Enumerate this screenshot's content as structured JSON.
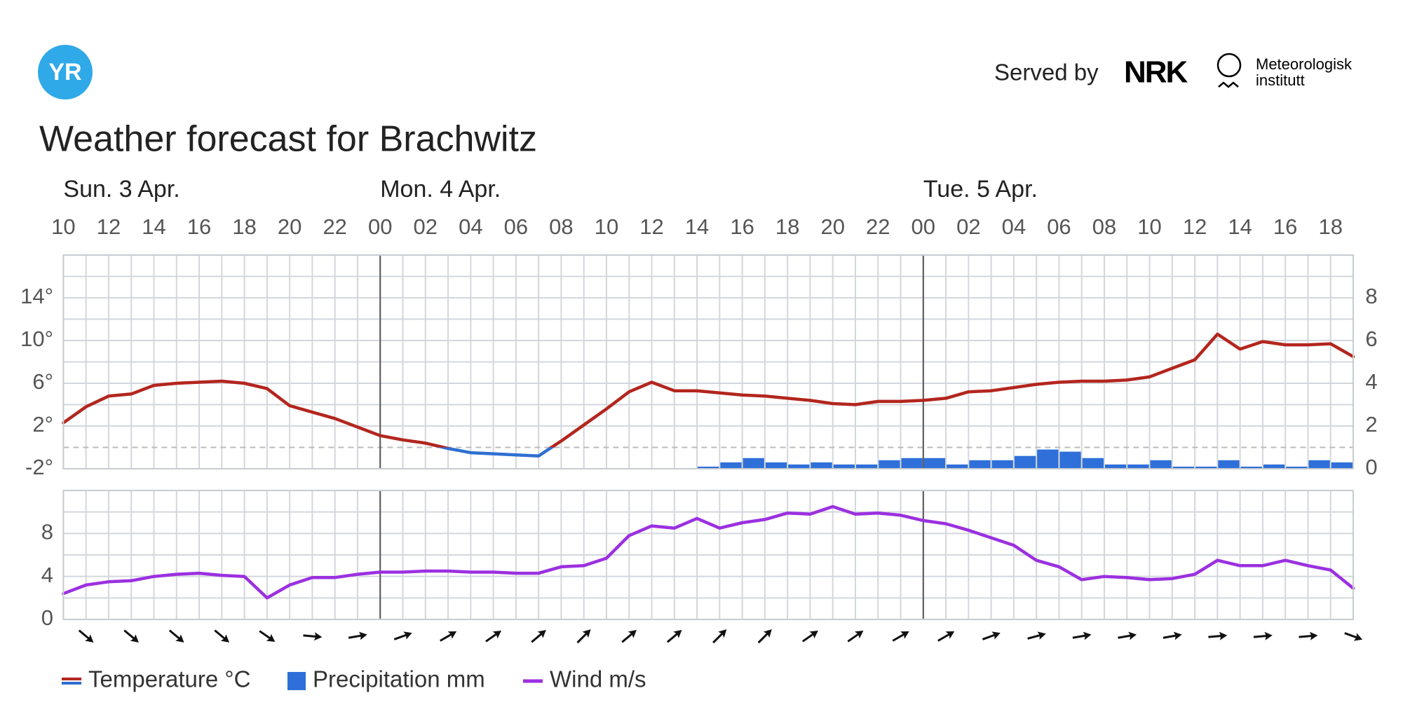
{
  "header": {
    "logo": "YR",
    "served_by": "Served by",
    "nrk": "NRK",
    "met": [
      "Meteorologisk",
      "institutt"
    ]
  },
  "chart_data": {
    "type": "weather",
    "title": "Weather forecast for Brachwitz",
    "days": [
      {
        "value": 0,
        "label": "Sun. 3 Apr."
      },
      {
        "value": 14,
        "label": "Mon. 4 Apr."
      },
      {
        "value": 38,
        "label": "Tue. 5 Apr."
      }
    ],
    "xlim": [
      0,
      57
    ],
    "xgrid": [
      0,
      1,
      2,
      3,
      4,
      5,
      6,
      7,
      8,
      9,
      10,
      11,
      12,
      13,
      14,
      15,
      16,
      17,
      18,
      19,
      20,
      21,
      22,
      23,
      24,
      25,
      26,
      27,
      28,
      29,
      30,
      31,
      32,
      33,
      34,
      35,
      36,
      37,
      38,
      39,
      40,
      41,
      42,
      43,
      44,
      45,
      46,
      47,
      48,
      49,
      50,
      51,
      52,
      53,
      54,
      55,
      56,
      57
    ],
    "xticks": [
      {
        "value": 0,
        "label": "10"
      },
      {
        "value": 2,
        "label": "12"
      },
      {
        "value": 4,
        "label": "14"
      },
      {
        "value": 6,
        "label": "16"
      },
      {
        "value": 8,
        "label": "18"
      },
      {
        "value": 10,
        "label": "20"
      },
      {
        "value": 12,
        "label": "22"
      },
      {
        "value": 14,
        "label": "00"
      },
      {
        "value": 16,
        "label": "02"
      },
      {
        "value": 18,
        "label": "04"
      },
      {
        "value": 20,
        "label": "06"
      },
      {
        "value": 22,
        "label": "08"
      },
      {
        "value": 24,
        "label": "10"
      },
      {
        "value": 26,
        "label": "12"
      },
      {
        "value": 28,
        "label": "14"
      },
      {
        "value": 30,
        "label": "16"
      },
      {
        "value": 32,
        "label": "18"
      },
      {
        "value": 34,
        "label": "20"
      },
      {
        "value": 36,
        "label": "22"
      },
      {
        "value": 38,
        "label": "00"
      },
      {
        "value": 40,
        "label": "02"
      },
      {
        "value": 42,
        "label": "04"
      },
      {
        "value": 44,
        "label": "06"
      },
      {
        "value": 46,
        "label": "08"
      },
      {
        "value": 48,
        "label": "10"
      },
      {
        "value": 50,
        "label": "12"
      },
      {
        "value": 52,
        "label": "14"
      },
      {
        "value": 54,
        "label": "16"
      },
      {
        "value": 56,
        "label": "18"
      }
    ],
    "temperature": {
      "name": "Temperature °C",
      "color": "#b3261e",
      "below_zero_color": "#2f6fd1",
      "values": [
        2.3,
        3.8,
        4.8,
        5.0,
        5.8,
        6.0,
        6.1,
        6.2,
        6.0,
        5.5,
        3.9,
        3.3,
        2.7,
        1.9,
        1.1,
        0.7,
        0.4,
        -0.1,
        -0.5,
        -0.6,
        -0.7,
        -0.8,
        0.6,
        2.1,
        3.6,
        5.2,
        6.1,
        5.3,
        5.3,
        5.1,
        4.9,
        4.8,
        4.6,
        4.4,
        4.1,
        4.0,
        4.3,
        4.3,
        4.4,
        4.6,
        5.2,
        5.3,
        5.6,
        5.9,
        6.1,
        6.2,
        6.2,
        6.3,
        6.6,
        7.4,
        8.2,
        10.6,
        9.2,
        9.9,
        9.6,
        9.6,
        9.7,
        8.5
      ],
      "ylim": [
        -2,
        18
      ],
      "yticks": [
        {
          "value": -2,
          "label": "-2°"
        },
        {
          "value": 2,
          "label": "2°"
        },
        {
          "value": 6,
          "label": "6°"
        },
        {
          "value": 10,
          "label": "10°"
        },
        {
          "value": 14,
          "label": "14°"
        }
      ],
      "grid": [
        -2,
        0,
        2,
        4,
        6,
        8,
        10,
        12,
        14,
        16,
        18
      ]
    },
    "precipitation": {
      "name": "Precipitation mm",
      "color": "#2f6fd9",
      "values": [
        0,
        0,
        0,
        0,
        0,
        0,
        0,
        0,
        0,
        0,
        0,
        0,
        0,
        0,
        0,
        0,
        0,
        0,
        0,
        0,
        0,
        0,
        0,
        0,
        0,
        0,
        0,
        0,
        0.1,
        0.3,
        0.5,
        0.3,
        0.2,
        0.3,
        0.2,
        0.2,
        0.4,
        0.5,
        0.5,
        0.2,
        0.4,
        0.4,
        0.6,
        0.9,
        0.8,
        0.5,
        0.2,
        0.2,
        0.4,
        0.1,
        0.1,
        0.4,
        0.1,
        0.2,
        0.1,
        0.4,
        0.3
      ],
      "ylim": [
        0,
        10
      ],
      "yticks": [
        0,
        2,
        4,
        6,
        8
      ]
    },
    "wind": {
      "name": "Wind m/s",
      "color": "#9b30e0",
      "values": [
        2.4,
        3.2,
        3.5,
        3.6,
        4.0,
        4.2,
        4.3,
        4.1,
        4.0,
        2.0,
        3.2,
        3.9,
        3.9,
        4.2,
        4.4,
        4.4,
        4.5,
        4.5,
        4.4,
        4.4,
        4.3,
        4.3,
        4.9,
        5.0,
        5.7,
        7.8,
        8.7,
        8.5,
        9.4,
        8.5,
        9.0,
        9.3,
        9.9,
        9.8,
        10.5,
        9.8,
        9.9,
        9.7,
        9.2,
        8.9,
        8.3,
        7.6,
        6.9,
        5.5,
        4.9,
        3.7,
        4.0,
        3.9,
        3.7,
        3.8,
        4.2,
        5.5,
        5.0,
        5.0,
        5.5,
        5.0,
        4.6,
        2.9
      ],
      "ylim": [
        0,
        12
      ],
      "yticks": [
        0,
        4,
        8
      ],
      "grid": [
        0,
        2,
        4,
        6,
        8,
        10,
        12
      ]
    },
    "wind_direction": [
      40,
      40,
      40,
      40,
      35,
      5,
      -10,
      -20,
      -30,
      -35,
      -40,
      -45,
      -40,
      -40,
      -45,
      -45,
      -35,
      -35,
      -30,
      -30,
      -20,
      -15,
      -10,
      -10,
      -10,
      -5,
      -5,
      -5,
      20
    ]
  }
}
